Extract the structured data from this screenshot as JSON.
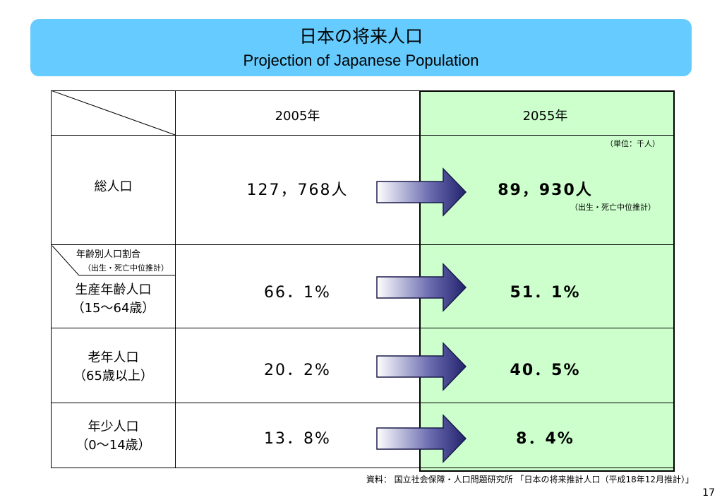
{
  "title": {
    "jp": "日本の将来人口",
    "en": "Projection of Japanese Population"
  },
  "table": {
    "col_2005": "2005年",
    "col_2055": "2055年",
    "unit_note": "（単位：千人）",
    "rows": [
      {
        "label_line1": "総人口",
        "label_line2": "",
        "v2005": "127，768人",
        "v2055": "89，930人",
        "v2055_note": "（出生・死亡中位推計）"
      },
      {
        "label_line1": "生産年齢人口",
        "label_line2": "（15〜64歳）",
        "v2005": "66．1%",
        "v2055": "51．1%"
      },
      {
        "label_line1": "老年人口",
        "label_line2": "（65歳以上）",
        "v2005": "20．2%",
        "v2055": "40．5%"
      },
      {
        "label_line1": "年少人口",
        "label_line2": "（0〜14歳）",
        "v2005": "13．8%",
        "v2055": "8．4%"
      }
    ],
    "ratio_header": "年齢別人口割合",
    "ratio_header_note": "（出生・死亡中位推計）"
  },
  "source": "資料： 国立社会保障・人口問題研究所 「日本の将来推計人口（平成18年12月推計）」",
  "page_number": "17",
  "colors": {
    "title_bg": "#66ccff",
    "highlight_bg": "#ccffcc",
    "arrow_dark": "#2a2a7a",
    "arrow_light": "#ffffff"
  }
}
